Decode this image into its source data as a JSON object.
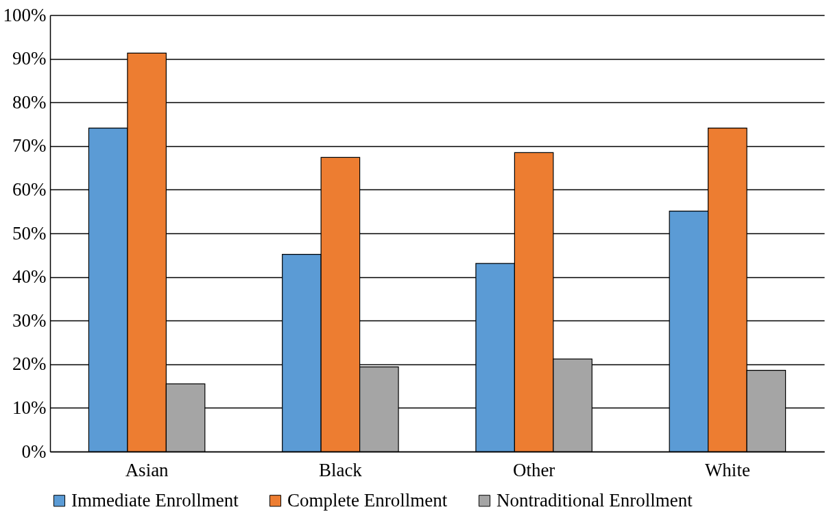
{
  "chart_data": {
    "type": "bar",
    "categories": [
      "Asian",
      "Black",
      "Other",
      "White"
    ],
    "series": [
      {
        "name": "Immediate Enrollment",
        "color": "#5b9bd5",
        "values": [
          74.1,
          45.2,
          43.1,
          55.1
        ]
      },
      {
        "name": "Complete Enrollment",
        "color": "#ed7d31",
        "values": [
          91.3,
          67.4,
          68.5,
          74.1
        ]
      },
      {
        "name": "Nontraditional Enrollment",
        "color": "#a5a5a5",
        "values": [
          15.5,
          19.4,
          21.2,
          18.6
        ]
      }
    ],
    "ylim": [
      0,
      100
    ],
    "yticks": [
      {
        "value": 0,
        "label": "0%"
      },
      {
        "value": 10,
        "label": "10%"
      },
      {
        "value": 20,
        "label": "20%"
      },
      {
        "value": 30,
        "label": "30%"
      },
      {
        "value": 40,
        "label": "40%"
      },
      {
        "value": 50,
        "label": "50%"
      },
      {
        "value": 60,
        "label": "60%"
      },
      {
        "value": 70,
        "label": "70%"
      },
      {
        "value": 80,
        "label": "80%"
      },
      {
        "value": 90,
        "label": "90%"
      },
      {
        "value": 100,
        "label": "100%"
      }
    ],
    "grid": "y",
    "legend": "bottom"
  }
}
